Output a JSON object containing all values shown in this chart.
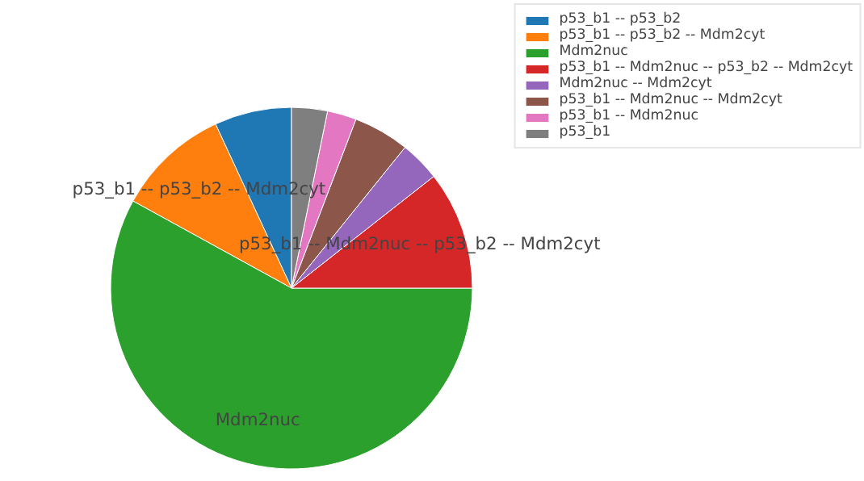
{
  "chart_data": {
    "type": "pie",
    "categories": [
      "p53_b1 -- p53_b2",
      "p53_b1 -- p53_b2 -- Mdm2cyt",
      "Mdm2nuc",
      "p53_b1 -- Mdm2nuc -- p53_b2 -- Mdm2cyt",
      "Mdm2nuc -- Mdm2cyt",
      "p53_b1 -- Mdm2nuc -- Mdm2cyt",
      "p53_b1 -- Mdm2nuc",
      "p53_b1"
    ],
    "values": [
      6.9,
      10.1,
      58.0,
      10.6,
      3.6,
      5.0,
      2.6,
      3.2
    ],
    "colors": [
      "#1f77b4",
      "#ff7f0e",
      "#2ca02c",
      "#d62728",
      "#9467bd",
      "#8c564b",
      "#e377c2",
      "#7f7f7f"
    ],
    "annotations": [
      {
        "text": "p53_b1 -- p53_b2 -- Mdm2cyt",
        "x": "p53_b1 -- p53_b2 -- Mdm2cyt"
      },
      {
        "text": "Mdm2nuc",
        "x": "Mdm2nuc"
      },
      {
        "text": "p53_b1 -- Mdm2nuc -- p53_b2 -- Mdm2cyt",
        "x": "p53_b1 -- Mdm2nuc -- p53_b2 -- Mdm2cyt"
      }
    ],
    "legend": "top right"
  }
}
